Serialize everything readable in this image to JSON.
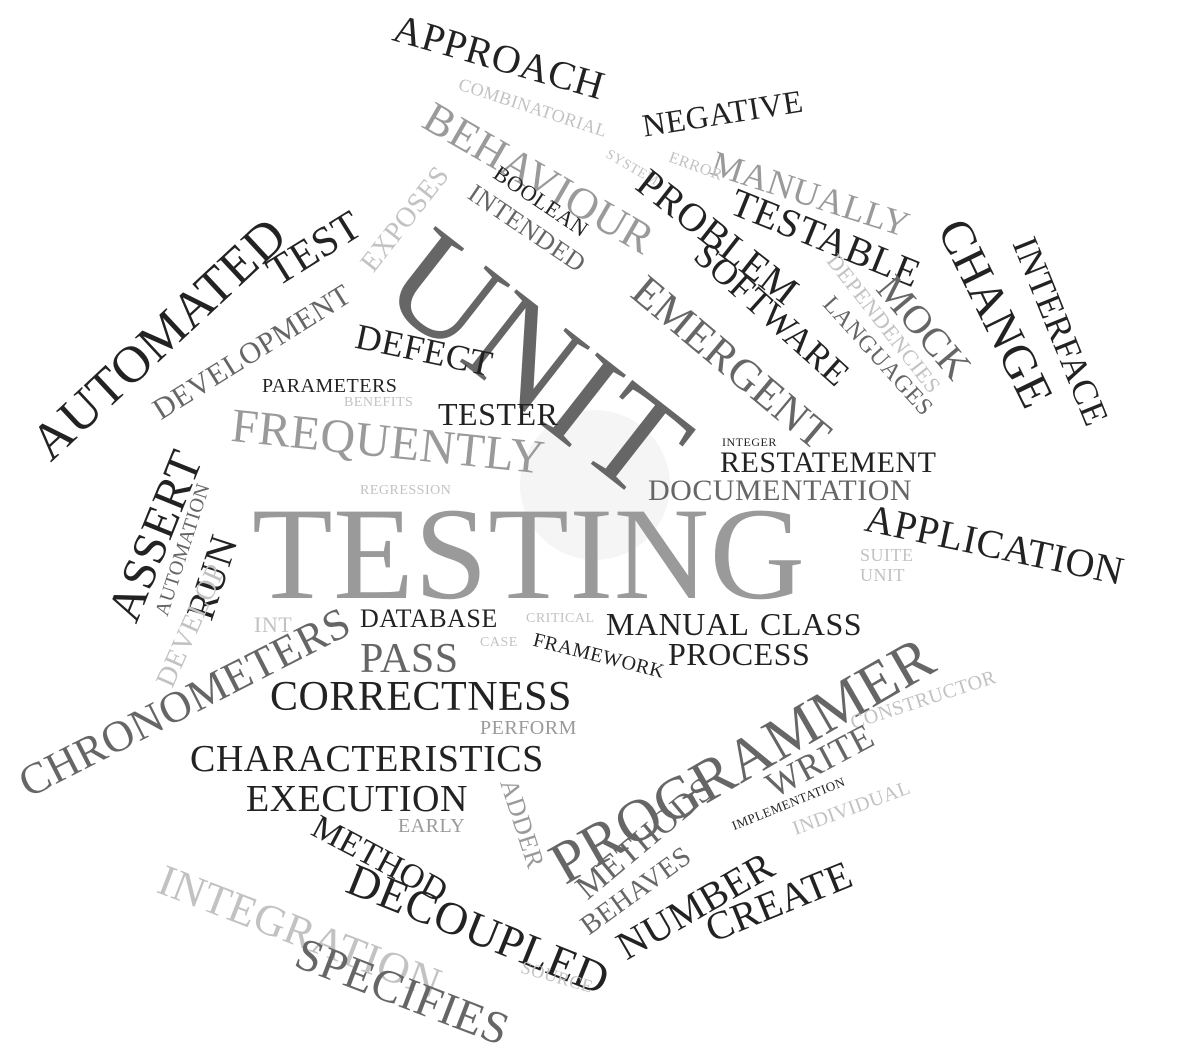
{
  "colors": {
    "background": "#ffffff",
    "dark": "#222222",
    "medium": "#666666",
    "light": "#9a9a9a",
    "faint": "#c2c2c2"
  },
  "words": [
    {
      "text": "APPROACH",
      "tone": "dark"
    },
    {
      "text": "COMBINATORIAL",
      "tone": "faint"
    },
    {
      "text": "BEHAVIOUR",
      "tone": "light"
    },
    {
      "text": "NEGATIVE",
      "tone": "dark"
    },
    {
      "text": "MANUALLY",
      "tone": "light"
    },
    {
      "text": "ERROR",
      "tone": "faint"
    },
    {
      "text": "SYSTEM",
      "tone": "faint"
    },
    {
      "text": "PROBLEM",
      "tone": "dark"
    },
    {
      "text": "TESTABLE",
      "tone": "dark"
    },
    {
      "text": "CHANGE",
      "tone": "dark"
    },
    {
      "text": "INTERFACE",
      "tone": "dark"
    },
    {
      "text": "BOOLEAN",
      "tone": "dark"
    },
    {
      "text": "INTENDED",
      "tone": "medium"
    },
    {
      "text": "EMERGENT",
      "tone": "medium"
    },
    {
      "text": "SOFTWARE",
      "tone": "dark"
    },
    {
      "text": "DEPENDENCIES",
      "tone": "faint"
    },
    {
      "text": "MOCK",
      "tone": "medium"
    },
    {
      "text": "LANGUAGES",
      "tone": "medium"
    },
    {
      "text": "EXPOSES",
      "tone": "faint"
    },
    {
      "text": "TEST",
      "tone": "dark"
    },
    {
      "text": "AUTOMATED",
      "tone": "dark"
    },
    {
      "text": "DEVELOPMENT",
      "tone": "medium"
    },
    {
      "text": "UNIT",
      "tone": "medium"
    },
    {
      "text": "DEFECT",
      "tone": "dark"
    },
    {
      "text": "PARAMETERS",
      "tone": "dark"
    },
    {
      "text": "BENEFITS",
      "tone": "faint"
    },
    {
      "text": "TESTER",
      "tone": "dark"
    },
    {
      "text": "FREQUENTLY",
      "tone": "light"
    },
    {
      "text": "INTEGER",
      "tone": "dark"
    },
    {
      "text": "RESTATEMENT",
      "tone": "dark"
    },
    {
      "text": "DOCUMENTATION",
      "tone": "medium"
    },
    {
      "text": "REGRESSION",
      "tone": "faint"
    },
    {
      "text": "ASSERT",
      "tone": "dark"
    },
    {
      "text": "AUTOMATION",
      "tone": "medium"
    },
    {
      "text": "RUN",
      "tone": "dark"
    },
    {
      "text": "TESTING",
      "tone": "light"
    },
    {
      "text": "APPLICATION",
      "tone": "dark"
    },
    {
      "text": "SUITE",
      "tone": "faint"
    },
    {
      "text": "UNIT",
      "tone": "faint"
    },
    {
      "text": "DEVELOP",
      "tone": "faint"
    },
    {
      "text": "INT",
      "tone": "faint"
    },
    {
      "text": "DATABASE",
      "tone": "dark"
    },
    {
      "text": "CRITICAL",
      "tone": "faint"
    },
    {
      "text": "CASE",
      "tone": "faint"
    },
    {
      "text": "MANUAL",
      "tone": "dark"
    },
    {
      "text": "CLASS",
      "tone": "dark"
    },
    {
      "text": "CHRONOMETERS",
      "tone": "medium"
    },
    {
      "text": "PASS",
      "tone": "medium"
    },
    {
      "text": "FRAMEWORK",
      "tone": "dark"
    },
    {
      "text": "PROCESS",
      "tone": "dark"
    },
    {
      "text": "CORRECTNESS",
      "tone": "dark"
    },
    {
      "text": "PROGRAMMER",
      "tone": "medium"
    },
    {
      "text": "CONSTRUCTOR",
      "tone": "faint"
    },
    {
      "text": "PERFORM",
      "tone": "light"
    },
    {
      "text": "CHARACTERISTICS",
      "tone": "dark"
    },
    {
      "text": "WRITE",
      "tone": "medium"
    },
    {
      "text": "IMPLEMENTATION",
      "tone": "dark"
    },
    {
      "text": "INDIVIDUAL",
      "tone": "faint"
    },
    {
      "text": "EXECUTION",
      "tone": "dark"
    },
    {
      "text": "METHODS",
      "tone": "medium"
    },
    {
      "text": "ADDER",
      "tone": "light"
    },
    {
      "text": "EARLY",
      "tone": "light"
    },
    {
      "text": "BEHAVES",
      "tone": "medium"
    },
    {
      "text": "METHOD",
      "tone": "dark"
    },
    {
      "text": "NUMBER",
      "tone": "dark"
    },
    {
      "text": "CREATE",
      "tone": "dark"
    },
    {
      "text": "INTEGRATION",
      "tone": "faint"
    },
    {
      "text": "DECOUPLED",
      "tone": "dark"
    },
    {
      "text": "SPECIFIES",
      "tone": "medium"
    },
    {
      "text": "SOURCE",
      "tone": "faint"
    }
  ]
}
